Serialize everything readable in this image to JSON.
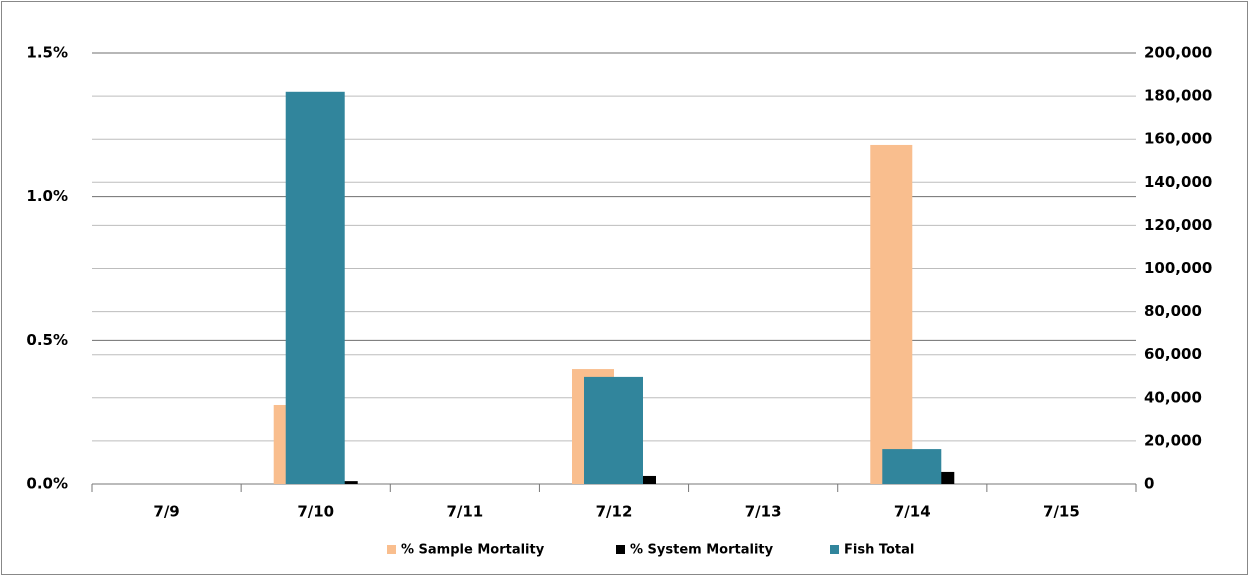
{
  "chart_data": {
    "type": "bar",
    "categories": [
      "7/9",
      "7/10",
      "7/11",
      "7/12",
      "7/13",
      "7/14",
      "7/15"
    ],
    "series": [
      {
        "name": "% Sample Mortality",
        "color": "#f9be8e",
        "values": [
          null,
          0.275,
          null,
          0.4,
          null,
          1.18,
          null
        ]
      },
      {
        "name": "% System Mortality",
        "color": "#000000",
        "values": [
          null,
          0.01,
          null,
          0.028,
          null,
          0.042,
          null
        ]
      },
      {
        "name": "Fish Total",
        "color": "#31859c",
        "axis": "y2",
        "values": [
          null,
          182000,
          null,
          49700,
          null,
          16200,
          null
        ]
      }
    ],
    "ylim": [
      0,
      1.5
    ],
    "yticks": [
      {
        "value": 0,
        "label": "0.0%"
      },
      {
        "value": 0.5,
        "label": "0.5%"
      },
      {
        "value": 1.0,
        "label": "1.0%"
      },
      {
        "value": 1.5,
        "label": "1.5%"
      }
    ],
    "y2lim": [
      0,
      200000
    ],
    "y2ticks": [
      0,
      {
        "value": 20000,
        "label": "20,000"
      },
      {
        "value": 40000,
        "label": "40,000"
      },
      {
        "value": 60000,
        "label": "60,000"
      },
      {
        "value": 80000,
        "label": "80,000"
      },
      {
        "value": 100000,
        "label": "100,000"
      },
      {
        "value": 120000,
        "label": "120,000"
      },
      {
        "value": 140000,
        "label": "140,000"
      },
      {
        "value": 160000,
        "label": "160,000"
      },
      {
        "value": 180000,
        "label": "180,000"
      },
      {
        "value": 200000,
        "label": "200,000"
      }
    ],
    "grid": true,
    "legend": "bottom"
  }
}
